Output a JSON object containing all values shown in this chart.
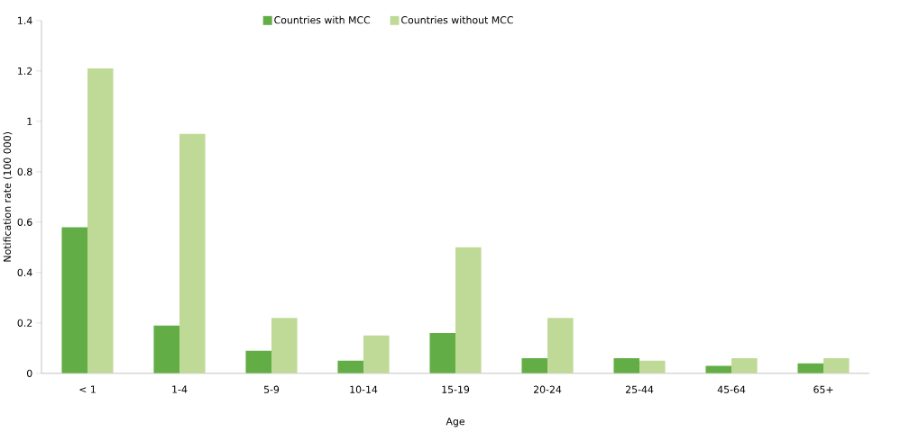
{
  "chart_data": {
    "type": "bar",
    "xlabel": "Age",
    "ylabel": "Notification rate (100 000)",
    "categories": [
      "< 1",
      "1-4",
      "5-9",
      "10-14",
      "15-19",
      "20-24",
      "25-44",
      "45-64",
      "65+"
    ],
    "series": [
      {
        "name": "Countries with MCC",
        "color": "#62ad45",
        "values": [
          0.58,
          0.19,
          0.09,
          0.05,
          0.16,
          0.06,
          0.06,
          0.03,
          0.04
        ]
      },
      {
        "name": "Countries without MCC",
        "color": "#bfda96",
        "values": [
          1.21,
          0.95,
          0.22,
          0.15,
          0.5,
          0.22,
          0.05,
          0.06,
          0.06
        ]
      }
    ],
    "ylim": [
      0,
      1.4
    ],
    "yticks": [
      0,
      0.2,
      0.4,
      0.6,
      0.8,
      1,
      1.2,
      1.4
    ],
    "grid": false,
    "legend": "top"
  }
}
